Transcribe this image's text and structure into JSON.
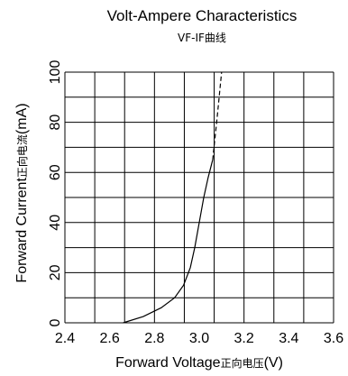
{
  "chart_data": {
    "type": "line",
    "title": "Volt-Ampere Characteristics",
    "subtitle": "VF-IF曲线",
    "xlabel": "Forward Voltage",
    "xlabel_cn": "正向电压",
    "xlabel_unit": "(V)",
    "ylabel": "Forward Current",
    "ylabel_cn": "正向电流",
    "ylabel_unit": "(mA)",
    "xlim": [
      2.4,
      3.6
    ],
    "ylim": [
      0,
      100
    ],
    "x_ticks": [
      "2.4",
      "2.6",
      "2.8",
      "3.0",
      "3.2",
      "3.4",
      "3.6"
    ],
    "y_ticks": [
      "0",
      "20",
      "40",
      "60",
      "80",
      "100"
    ],
    "grid": true,
    "series": [
      {
        "style": "solid",
        "x": [
          2.66,
          2.75,
          2.83,
          2.89,
          2.93,
          2.96,
          2.98,
          3.0,
          3.02,
          3.04,
          3.06
        ],
        "y": [
          0,
          2.5,
          6,
          10,
          15,
          22,
          30,
          40,
          50,
          58,
          65
        ]
      },
      {
        "style": "dashed",
        "x": [
          3.06,
          3.08,
          3.1
        ],
        "y": [
          65,
          82,
          100
        ]
      }
    ]
  }
}
